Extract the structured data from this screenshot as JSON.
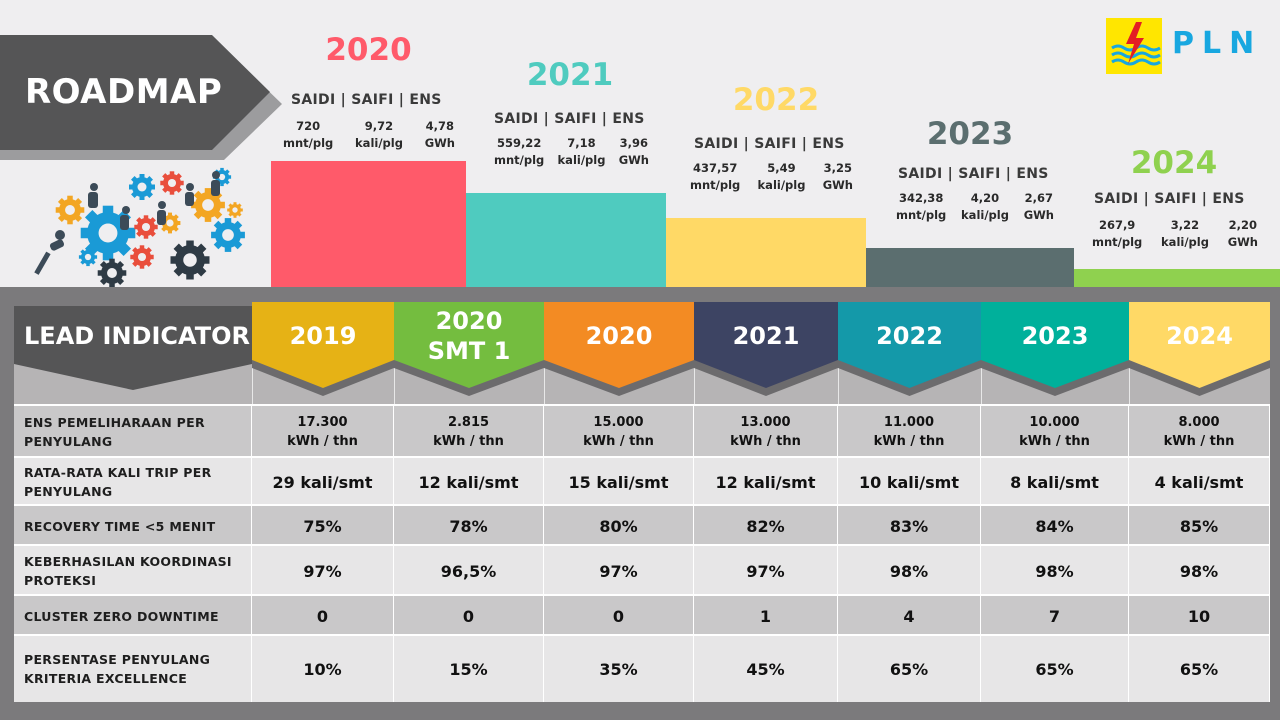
{
  "roadmap": {
    "title": "ROADMAP"
  },
  "logo": {
    "text": "PLN",
    "icon": "pln-lightning-icon",
    "color": "#18a7e0",
    "bg": "#ffe600"
  },
  "steps": [
    {
      "year": "2020",
      "color": "#ff5a6a",
      "header": "SAIDI | SAIFI | ENS",
      "saidi": "720",
      "saidi_unit": "mnt/plg",
      "saifi": "9,72",
      "saifi_unit": "kali/plg",
      "ens": "4,78",
      "ens_unit": "GWh"
    },
    {
      "year": "2021",
      "color": "#4fcbbf",
      "header": "SAIDI | SAIFI | ENS",
      "saidi": "559,22",
      "saidi_unit": "mnt/plg",
      "saifi": "7,18",
      "saifi_unit": "kali/plg",
      "ens": "3,96",
      "ens_unit": "GWh"
    },
    {
      "year": "2022",
      "color": "#ffd966",
      "header": "SAIDI | SAIFI | ENS",
      "saidi": "437,57",
      "saidi_unit": "mnt/plg",
      "saifi": "5,49",
      "saifi_unit": "kali/plg",
      "ens": "3,25",
      "ens_unit": "GWh"
    },
    {
      "year": "2023",
      "color": "#5b6e6f",
      "header": "SAIDI | SAIFI | ENS",
      "saidi": "342,38",
      "saidi_unit": "mnt/plg",
      "saifi": "4,20",
      "saifi_unit": "kali/plg",
      "ens": "2,67",
      "ens_unit": "GWh"
    },
    {
      "year": "2024",
      "color": "#8fd14f",
      "header": "SAIDI | SAIFI | ENS",
      "saidi": "267,9",
      "saidi_unit": "mnt/plg",
      "saifi": "3,22",
      "saifi_unit": "kali/plg",
      "ens": "2,20",
      "ens_unit": "GWh"
    }
  ],
  "lead": {
    "title": "LEAD INDICATOR",
    "columns": [
      {
        "label": "2019",
        "color": "#e6b215"
      },
      {
        "label": "2020\nSMT 1",
        "color": "#74bd3f"
      },
      {
        "label": "2020",
        "color": "#f38b23"
      },
      {
        "label": "2021",
        "color": "#3d4463"
      },
      {
        "label": "2022",
        "color": "#1499a9"
      },
      {
        "label": "2023",
        "color": "#00b09b"
      },
      {
        "label": "2024",
        "color": "#ffd966"
      }
    ],
    "rows": [
      {
        "label": "ENS PEMELIHARAAN PER PENYULANG",
        "values": [
          "17.300\nkWh / thn",
          "2.815\nkWh / thn",
          "15.000\nkWh / thn",
          "13.000\nkWh / thn",
          "11.000\nkWh / thn",
          "10.000\nkWh / thn",
          "8.000\nkWh / thn"
        ]
      },
      {
        "label": "RATA-RATA KALI TRIP PER PENYULANG",
        "values": [
          "29 kali/smt",
          "12 kali/smt",
          "15 kali/smt",
          "12 kali/smt",
          "10 kali/smt",
          "8 kali/smt",
          "4 kali/smt"
        ]
      },
      {
        "label": "RECOVERY TIME <5 MENIT",
        "values": [
          "75%",
          "78%",
          "80%",
          "82%",
          "83%",
          "84%",
          "85%"
        ]
      },
      {
        "label": "KEBERHASILAN KOORDINASI PROTEKSI",
        "values": [
          "97%",
          "96,5%",
          "97%",
          "97%",
          "98%",
          "98%",
          "98%"
        ]
      },
      {
        "label": "CLUSTER ZERO DOWNTIME",
        "values": [
          "0",
          "0",
          "0",
          "1",
          "4",
          "7",
          "10"
        ]
      },
      {
        "label": "PERSENTASE PENYULANG KRITERIA EXCELLENCE",
        "values": [
          "10%",
          "15%",
          "35%",
          "45%",
          "65%",
          "65%",
          "65%"
        ]
      }
    ]
  },
  "illustration": {
    "icon": "gears-teamwork-icon"
  }
}
